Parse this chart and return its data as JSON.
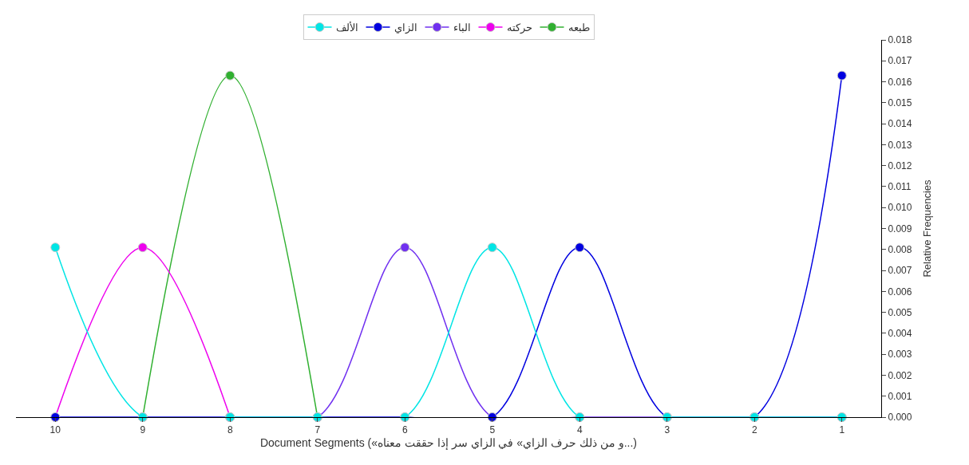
{
  "chart_data": {
    "type": "line",
    "xlabel": "Document Segments («و من ذلك حرف الزاي» في الزاي سر إذا حققت معناه...)",
    "ylabel": "Relative Frequencies",
    "categories": [
      "10",
      "9",
      "8",
      "7",
      "6",
      "5",
      "4",
      "3",
      "2",
      "1"
    ],
    "series": [
      {
        "name": "الألف",
        "color": "#00e5e5",
        "values": [
          0.0081,
          0,
          0,
          0,
          0,
          0.0081,
          0,
          0,
          0,
          0
        ]
      },
      {
        "name": "الزاي",
        "color": "#0000e0",
        "values": [
          0,
          0,
          0,
          0,
          0,
          0,
          0.0081,
          0,
          0,
          0.0163
        ]
      },
      {
        "name": "الباء",
        "color": "#7030f0",
        "values": [
          null,
          null,
          0,
          0,
          0.0081,
          0,
          0,
          0,
          0,
          0
        ]
      },
      {
        "name": "حركته",
        "color": "#ee00ee",
        "values": [
          0,
          0.0081,
          0,
          null,
          null,
          null,
          null,
          null,
          null,
          null
        ]
      },
      {
        "name": "طبعه",
        "color": "#30b030",
        "values": [
          null,
          0,
          0.0163,
          0,
          null,
          null,
          null,
          null,
          null,
          null
        ]
      }
    ],
    "ylim": [
      0,
      0.018
    ],
    "yticks": [
      {
        "value": 0,
        "label": "0.000"
      },
      {
        "value": 0.001,
        "label": "0.001"
      },
      {
        "value": 0.002,
        "label": "0.002"
      },
      {
        "value": 0.003,
        "label": "0.003"
      },
      {
        "value": 0.004,
        "label": "0.004"
      },
      {
        "value": 0.005,
        "label": "0.005"
      },
      {
        "value": 0.006,
        "label": "0.006"
      },
      {
        "value": 0.007,
        "label": "0.007"
      },
      {
        "value": 0.008,
        "label": "0.008"
      },
      {
        "value": 0.009,
        "label": "0.009"
      },
      {
        "value": 0.01,
        "label": "0.010"
      },
      {
        "value": 0.011,
        "label": "0.011"
      },
      {
        "value": 0.012,
        "label": "0.012"
      },
      {
        "value": 0.013,
        "label": "0.013"
      },
      {
        "value": 0.014,
        "label": "0.014"
      },
      {
        "value": 0.015,
        "label": "0.015"
      },
      {
        "value": 0.016,
        "label": "0.016"
      },
      {
        "value": 0.017,
        "label": "0.017"
      },
      {
        "value": 0.018,
        "label": "0.018"
      }
    ],
    "legend": "top",
    "marker": "circle",
    "line_style": "solid"
  }
}
